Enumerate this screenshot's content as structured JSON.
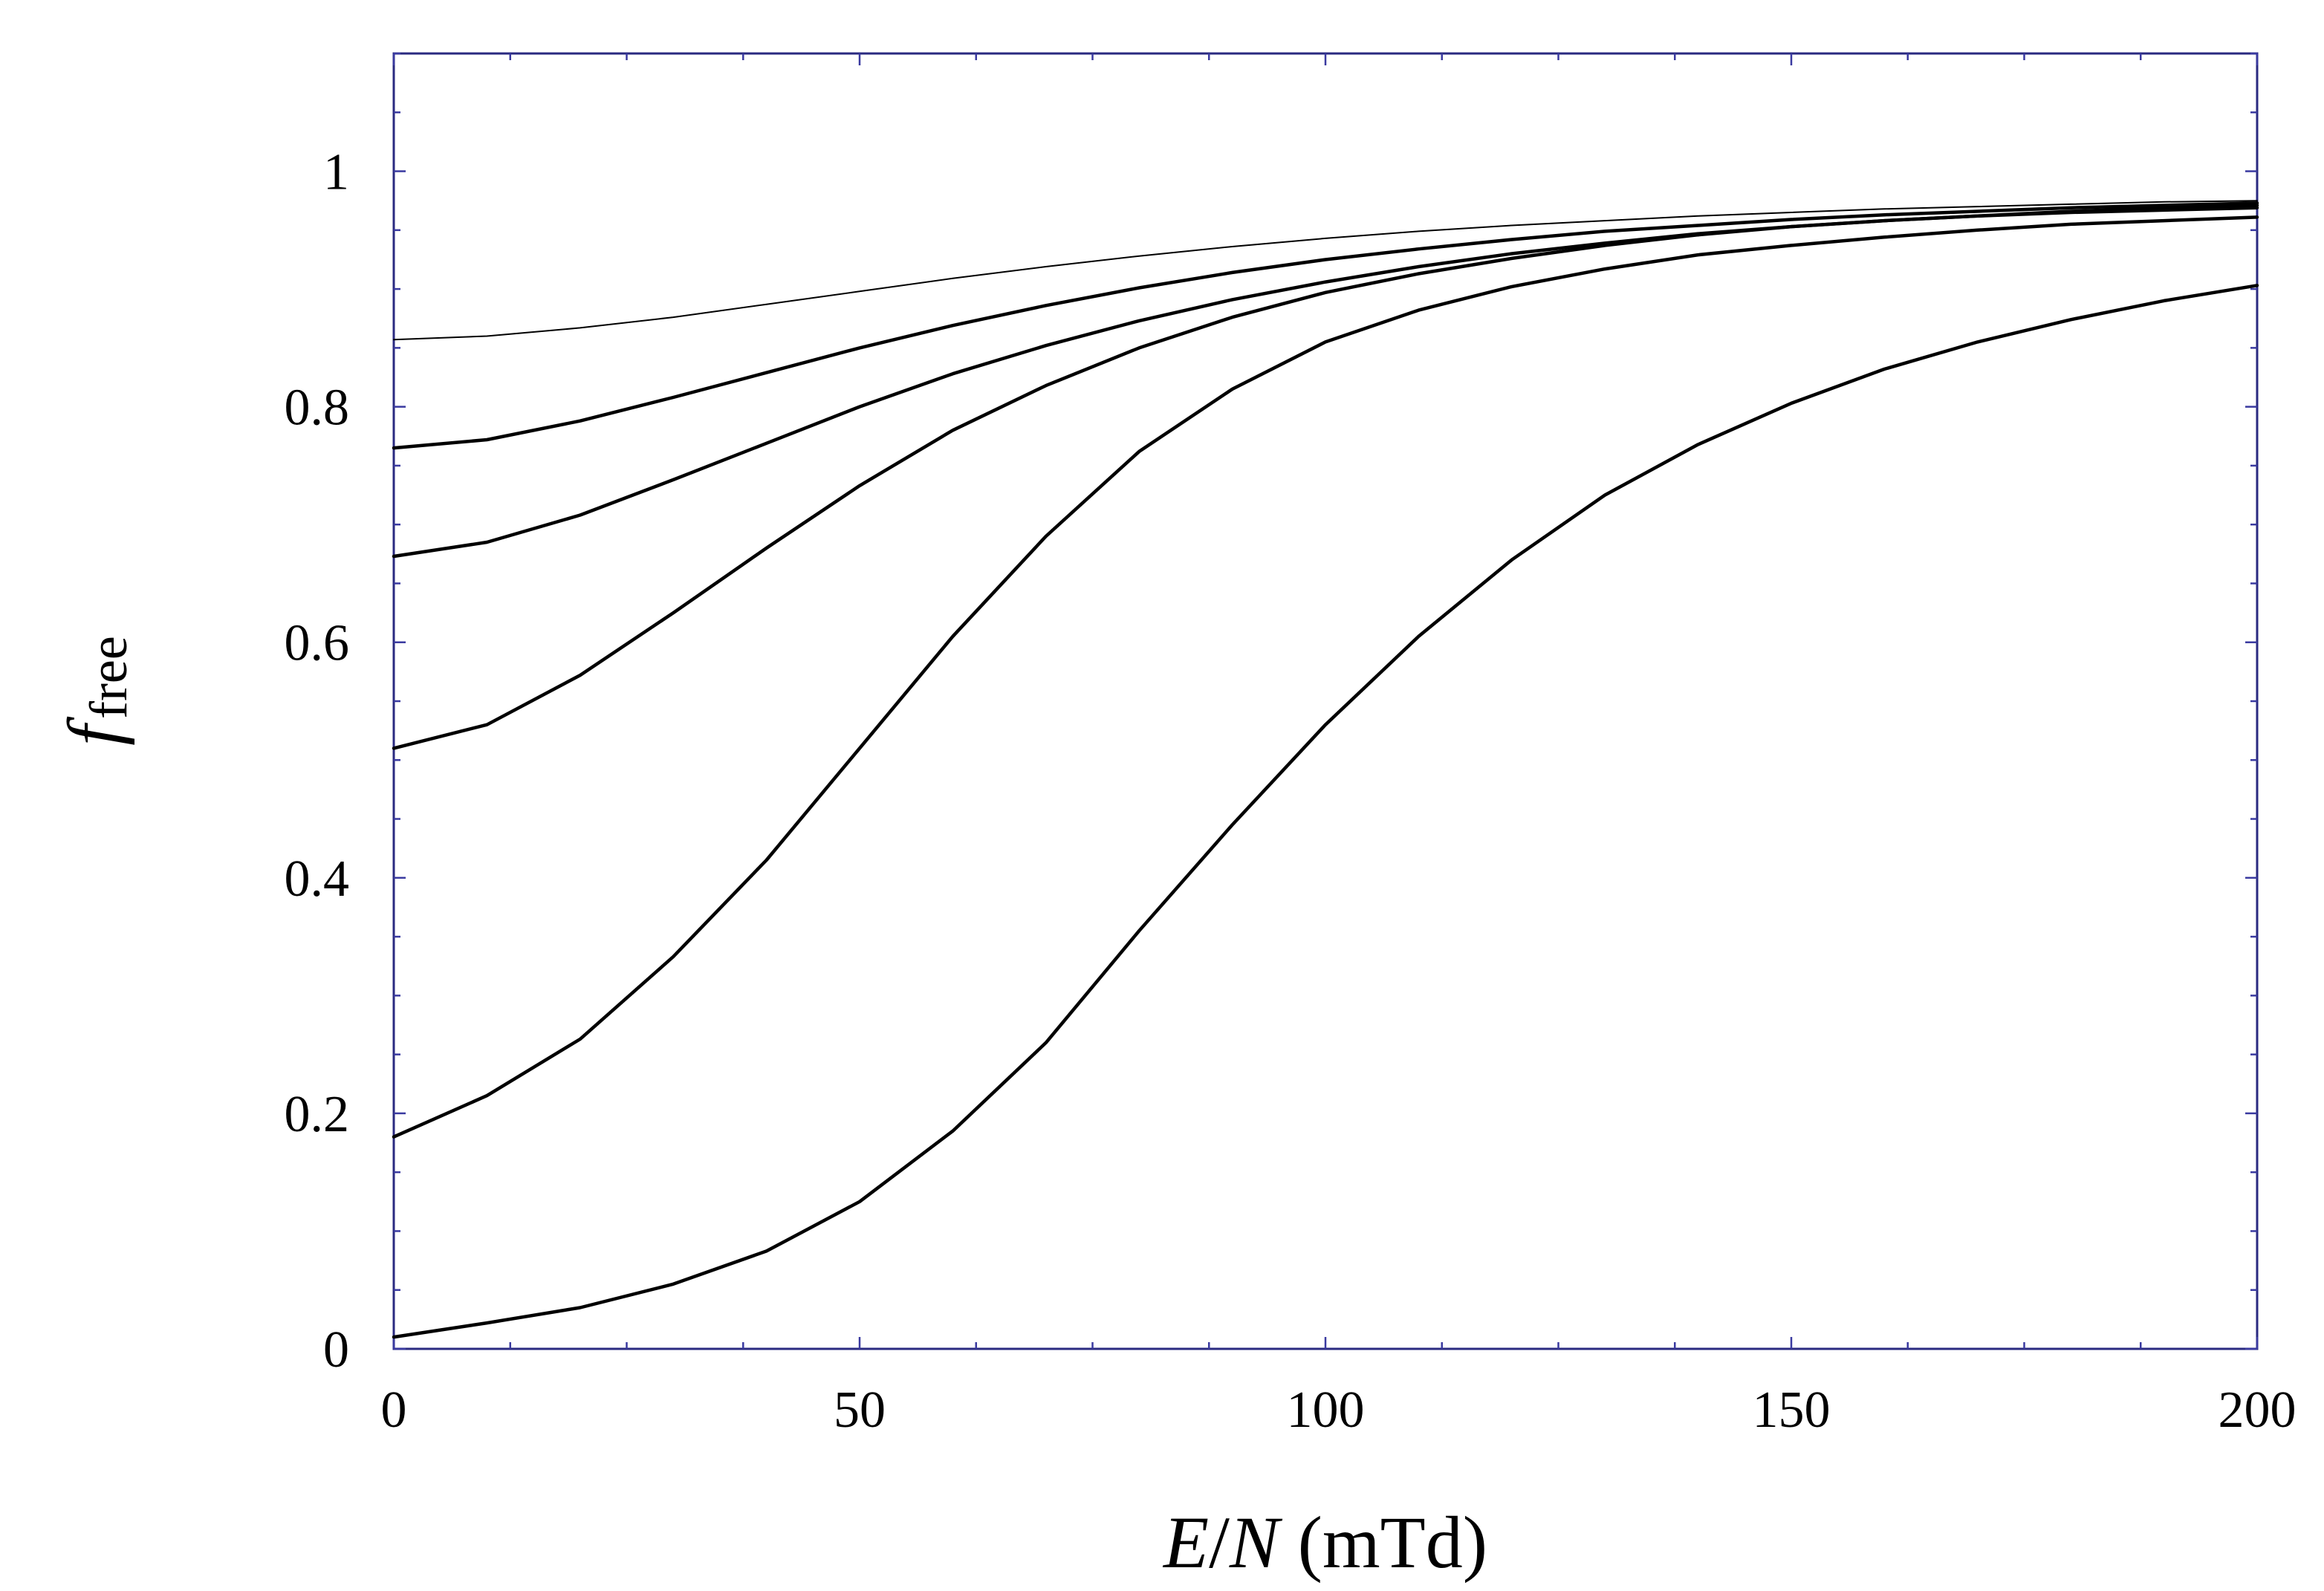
{
  "chart_data": {
    "type": "line",
    "xlabel": {
      "var1": "E",
      "sep": "/",
      "var2": "N",
      "unit": " (mTd)"
    },
    "ylabel": {
      "var": "f",
      "sub": "free"
    },
    "xlim": [
      0,
      200
    ],
    "ylim": [
      0,
      1.1
    ],
    "x_ticks": [
      0,
      50,
      100,
      150,
      200
    ],
    "x_tick_labels": [
      "0",
      "50",
      "100",
      "150",
      "200"
    ],
    "y_ticks": [
      0,
      0.2,
      0.4,
      0.6,
      0.8,
      1
    ],
    "y_tick_labels": [
      "0",
      "0.2",
      "0.4",
      "0.6",
      "0.8",
      "1"
    ],
    "grid": false,
    "series": [
      {
        "x": [
          0,
          10,
          20,
          30,
          40,
          50,
          60,
          70,
          80,
          90,
          100,
          110,
          120,
          130,
          140,
          150,
          160,
          170,
          180,
          190,
          200
        ],
        "values": [
          0.857,
          0.86,
          0.867,
          0.876,
          0.887,
          0.898,
          0.909,
          0.919,
          0.928,
          0.936,
          0.943,
          0.949,
          0.954,
          0.958,
          0.962,
          0.965,
          0.968,
          0.97,
          0.972,
          0.974,
          0.975
        ]
      },
      {
        "x": [
          0,
          10,
          20,
          30,
          40,
          50,
          60,
          70,
          80,
          90,
          100,
          110,
          120,
          130,
          140,
          150,
          160,
          170,
          180,
          190,
          200
        ],
        "values": [
          0.765,
          0.772,
          0.788,
          0.808,
          0.829,
          0.85,
          0.869,
          0.886,
          0.901,
          0.914,
          0.925,
          0.934,
          0.942,
          0.949,
          0.954,
          0.959,
          0.963,
          0.966,
          0.969,
          0.971,
          0.973
        ]
      },
      {
        "x": [
          0,
          10,
          20,
          30,
          40,
          50,
          60,
          70,
          80,
          90,
          100,
          110,
          120,
          130,
          140,
          150,
          160,
          170,
          180,
          190,
          200
        ],
        "values": [
          0.673,
          0.685,
          0.708,
          0.738,
          0.769,
          0.8,
          0.828,
          0.852,
          0.873,
          0.891,
          0.906,
          0.919,
          0.93,
          0.939,
          0.947,
          0.953,
          0.958,
          0.962,
          0.966,
          0.969,
          0.971
        ]
      },
      {
        "x": [
          0,
          10,
          20,
          30,
          40,
          50,
          60,
          70,
          80,
          90,
          100,
          110,
          120,
          130,
          140,
          150,
          160,
          170,
          180,
          190,
          200
        ],
        "values": [
          0.51,
          0.53,
          0.572,
          0.625,
          0.68,
          0.733,
          0.78,
          0.818,
          0.85,
          0.876,
          0.897,
          0.913,
          0.926,
          0.937,
          0.946,
          0.953,
          0.958,
          0.962,
          0.965,
          0.967,
          0.969
        ]
      },
      {
        "x": [
          0,
          10,
          20,
          30,
          40,
          50,
          60,
          70,
          80,
          90,
          100,
          110,
          120,
          130,
          140,
          150,
          160,
          170,
          180,
          190,
          200
        ],
        "values": [
          0.18,
          0.215,
          0.263,
          0.333,
          0.415,
          0.51,
          0.605,
          0.69,
          0.762,
          0.815,
          0.855,
          0.882,
          0.902,
          0.917,
          0.929,
          0.937,
          0.944,
          0.95,
          0.955,
          0.958,
          0.961
        ]
      },
      {
        "x": [
          0,
          10,
          20,
          30,
          40,
          50,
          60,
          70,
          80,
          90,
          100,
          110,
          120,
          130,
          140,
          150,
          160,
          170,
          180,
          190,
          200
        ],
        "values": [
          0.01,
          0.022,
          0.035,
          0.055,
          0.083,
          0.125,
          0.185,
          0.26,
          0.355,
          0.445,
          0.53,
          0.605,
          0.67,
          0.725,
          0.768,
          0.803,
          0.832,
          0.855,
          0.874,
          0.89,
          0.903
        ]
      }
    ]
  }
}
